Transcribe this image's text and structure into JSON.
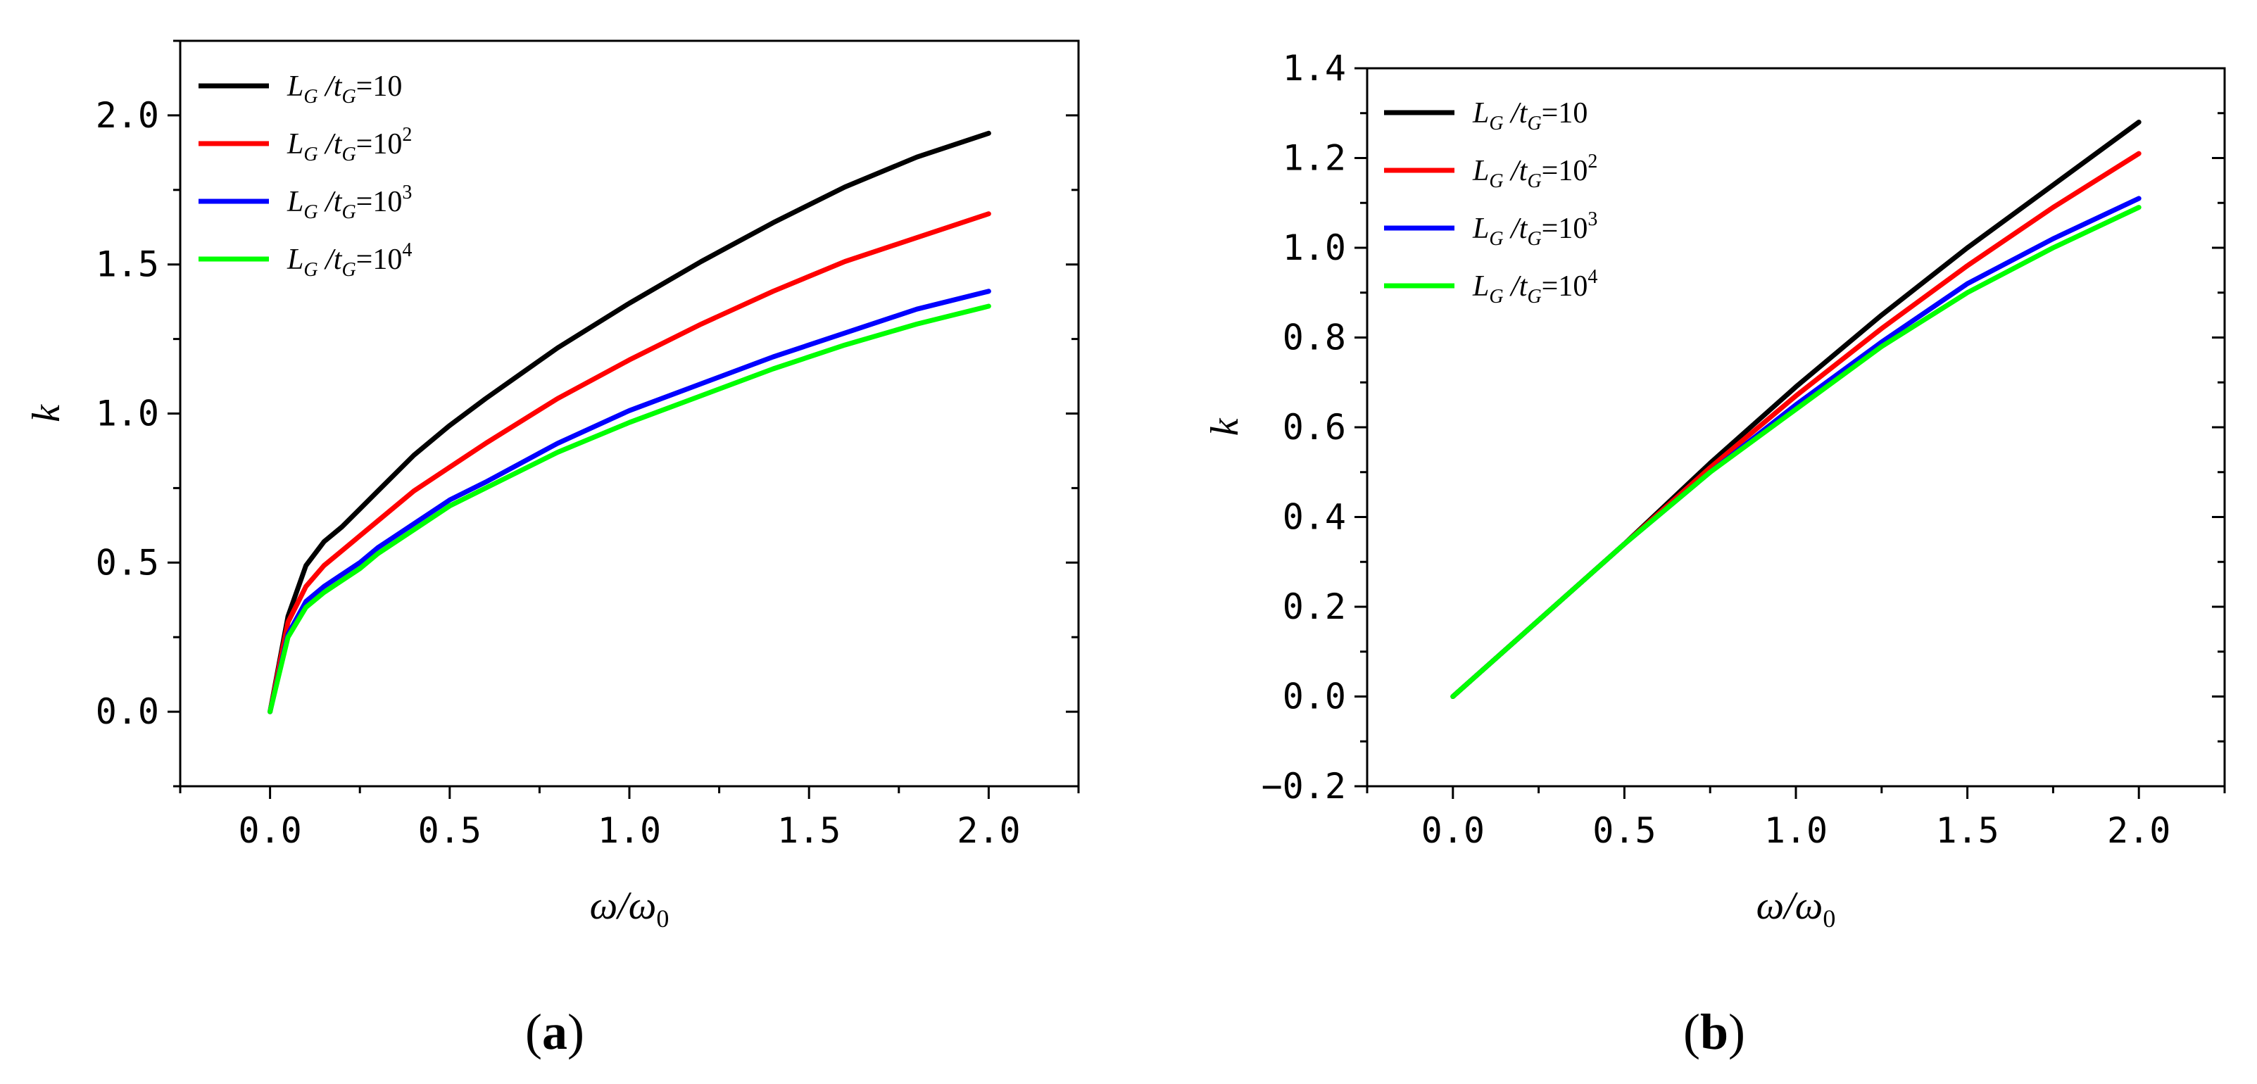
{
  "chart_data": [
    {
      "type": "line",
      "panel_label": "a",
      "xlabel": "ω/ω0",
      "ylabel": "k",
      "xlim": [
        -0.25,
        2.25
      ],
      "ylim": [
        -0.25,
        2.25
      ],
      "xticks": [
        0.0,
        0.5,
        1.0,
        1.5,
        2.0
      ],
      "xtick_labels": [
        "0.0",
        "0.5",
        "1.0",
        "1.5",
        "2.0"
      ],
      "yticks": [
        0.0,
        0.5,
        1.0,
        1.5,
        2.0
      ],
      "ytick_labels": [
        "0.0",
        "0.5",
        "1.0",
        "1.5",
        "2.0"
      ],
      "legend_position": "top-left",
      "grid": false,
      "x": [
        0,
        0.05,
        0.1,
        0.15,
        0.2,
        0.25,
        0.3,
        0.4,
        0.5,
        0.6,
        0.8,
        1.0,
        1.2,
        1.4,
        1.6,
        1.8,
        2.0
      ],
      "series": [
        {
          "name": "L_G/t_G=10",
          "color": "#000000",
          "values": [
            0,
            0.32,
            0.49,
            0.57,
            0.62,
            0.68,
            0.74,
            0.86,
            0.96,
            1.05,
            1.22,
            1.37,
            1.51,
            1.64,
            1.76,
            1.86,
            1.94
          ]
        },
        {
          "name": "L_G/t_G=10^2",
          "color": "#ff0000",
          "values": [
            0,
            0.3,
            0.42,
            0.49,
            0.54,
            0.59,
            0.64,
            0.74,
            0.82,
            0.9,
            1.05,
            1.18,
            1.3,
            1.41,
            1.51,
            1.59,
            1.67
          ]
        },
        {
          "name": "L_G/t_G=10^3",
          "color": "#0000ff",
          "values": [
            0,
            0.26,
            0.37,
            0.42,
            0.46,
            0.5,
            0.55,
            0.63,
            0.71,
            0.77,
            0.9,
            1.01,
            1.1,
            1.19,
            1.27,
            1.35,
            1.41
          ]
        },
        {
          "name": "L_G/t_G=10^4",
          "color": "#00ff00",
          "values": [
            0,
            0.25,
            0.35,
            0.4,
            0.44,
            0.48,
            0.53,
            0.61,
            0.69,
            0.75,
            0.87,
            0.97,
            1.06,
            1.15,
            1.23,
            1.3,
            1.36
          ]
        }
      ],
      "legend": [
        {
          "base": "L",
          "sub1": "G",
          "mid": " /t",
          "sub2": "G",
          "eq": "=10",
          "sup": ""
        },
        {
          "base": "L",
          "sub1": "G",
          "mid": " /t",
          "sub2": "G",
          "eq": "=10",
          "sup": "2"
        },
        {
          "base": "L",
          "sub1": "G",
          "mid": " /t",
          "sub2": "G",
          "eq": "=10",
          "sup": "3"
        },
        {
          "base": "L",
          "sub1": "G",
          "mid": " /t",
          "sub2": "G",
          "eq": "=10",
          "sup": "4"
        }
      ]
    },
    {
      "type": "line",
      "panel_label": "b",
      "xlabel": "ω/ω0",
      "ylabel": "k",
      "xlim": [
        -0.25,
        2.25
      ],
      "ylim": [
        -0.2,
        1.4
      ],
      "xticks": [
        0.0,
        0.5,
        1.0,
        1.5,
        2.0
      ],
      "xtick_labels": [
        "0.0",
        "0.5",
        "1.0",
        "1.5",
        "2.0"
      ],
      "yticks": [
        -0.2,
        0.0,
        0.2,
        0.4,
        0.6,
        0.8,
        1.0,
        1.2,
        1.4
      ],
      "ytick_labels": [
        "−0.2",
        "0.0",
        "0.2",
        "0.4",
        "0.6",
        "0.8",
        "1.0",
        "1.2",
        "1.4"
      ],
      "legend_position": "top-left",
      "grid": false,
      "x": [
        0,
        0.25,
        0.5,
        0.75,
        1.0,
        1.25,
        1.5,
        1.75,
        2.0
      ],
      "series": [
        {
          "name": "L_G/t_G=10",
          "color": "#000000",
          "values": [
            0,
            0.17,
            0.34,
            0.52,
            0.69,
            0.85,
            1.0,
            1.14,
            1.28
          ]
        },
        {
          "name": "L_G/t_G=10^2",
          "color": "#ff0000",
          "values": [
            0,
            0.17,
            0.34,
            0.51,
            0.67,
            0.82,
            0.96,
            1.09,
            1.21
          ]
        },
        {
          "name": "L_G/t_G=10^3",
          "color": "#0000ff",
          "values": [
            0,
            0.17,
            0.34,
            0.5,
            0.65,
            0.79,
            0.92,
            1.02,
            1.11
          ]
        },
        {
          "name": "L_G/t_G=10^4",
          "color": "#00ff00",
          "values": [
            0,
            0.17,
            0.34,
            0.5,
            0.64,
            0.78,
            0.9,
            1.0,
            1.09
          ]
        }
      ],
      "legend": [
        {
          "base": "L",
          "sub1": "G",
          "mid": " /t",
          "sub2": "G",
          "eq": "=10",
          "sup": ""
        },
        {
          "base": "L",
          "sub1": "G",
          "mid": " /t",
          "sub2": "G",
          "eq": "=10",
          "sup": "2"
        },
        {
          "base": "L",
          "sub1": "G",
          "mid": " /t",
          "sub2": "G",
          "eq": "=10",
          "sup": "3"
        },
        {
          "base": "L",
          "sub1": "G",
          "mid": " /t",
          "sub2": "G",
          "eq": "=10",
          "sup": "4"
        }
      ]
    }
  ]
}
